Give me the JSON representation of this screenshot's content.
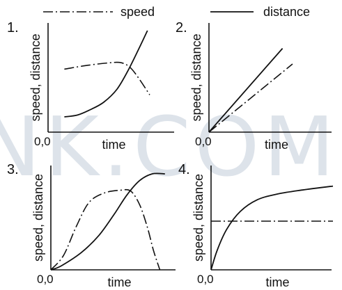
{
  "legend": {
    "speed_label": "speed",
    "distance_label": "distance"
  },
  "watermark": "NK.COM",
  "chart_data": [
    {
      "panel_label": "1.",
      "type": "line",
      "xlabel": "time",
      "ylabel": "speed, distance",
      "origin_label": "0,0",
      "xlim": [
        0,
        10
      ],
      "ylim": [
        0,
        10
      ],
      "series": [
        {
          "name": "speed",
          "style": "dash-dot",
          "x": [
            0.6,
            2.6,
            4.8,
            5.8,
            6.6,
            7.4,
            8.4
          ],
          "y": [
            5.8,
            6.2,
            6.5,
            6.5,
            6.0,
            4.8,
            3.0
          ]
        },
        {
          "name": "distance",
          "style": "solid",
          "x": [
            0.6,
            1.8,
            3.0,
            4.2,
            5.4,
            6.4,
            7.4,
            8.2
          ],
          "y": [
            0.6,
            0.8,
            1.4,
            2.2,
            3.6,
            5.6,
            8.0,
            10.0
          ]
        }
      ]
    },
    {
      "panel_label": "2.",
      "type": "line",
      "xlabel": "time",
      "ylabel": "speed, distance",
      "origin_label": "0,0",
      "xlim": [
        0,
        10
      ],
      "ylim": [
        0,
        10
      ],
      "series": [
        {
          "name": "speed",
          "style": "dash-dot",
          "x": [
            0.0,
            7.5
          ],
          "y": [
            0.0,
            7.0
          ]
        },
        {
          "name": "distance",
          "style": "solid",
          "x": [
            0.0,
            6.6
          ],
          "y": [
            0.0,
            8.6
          ]
        }
      ]
    },
    {
      "panel_label": "3.",
      "type": "line",
      "xlabel": "time",
      "ylabel": "speed, distance",
      "origin_label": "0,0",
      "xlim": [
        0,
        10
      ],
      "ylim": [
        0,
        10
      ],
      "series": [
        {
          "name": "speed",
          "style": "dash-dot",
          "x": [
            0.0,
            1.0,
            2.0,
            3.0,
            4.2,
            5.5,
            6.3,
            7.0,
            7.6,
            8.1,
            8.6
          ],
          "y": [
            0.0,
            1.5,
            4.5,
            7.0,
            8.0,
            8.3,
            8.2,
            6.8,
            4.5,
            2.0,
            0.0
          ]
        },
        {
          "name": "distance",
          "style": "solid",
          "x": [
            0.0,
            0.8,
            2.4,
            3.8,
            5.0,
            6.0,
            7.0,
            8.0,
            9.0
          ],
          "y": [
            0.0,
            0.4,
            1.8,
            3.6,
            5.8,
            7.8,
            9.3,
            10.0,
            10.0
          ]
        }
      ]
    },
    {
      "panel_label": "4.",
      "type": "line",
      "xlabel": "time",
      "ylabel": "speed, distance",
      "origin_label": "0,0",
      "xlim": [
        0,
        10
      ],
      "ylim": [
        0,
        10
      ],
      "series": [
        {
          "name": "speed",
          "style": "dash-dot",
          "x": [
            0.0,
            10.0
          ],
          "y": [
            5.0,
            5.0
          ]
        },
        {
          "name": "distance",
          "style": "solid",
          "x": [
            0.0,
            0.5,
            1.3,
            2.4,
            3.8,
            5.5,
            7.5,
            10.0
          ],
          "y": [
            0.0,
            2.0,
            4.2,
            6.0,
            7.2,
            7.8,
            8.2,
            8.6
          ]
        }
      ]
    }
  ]
}
